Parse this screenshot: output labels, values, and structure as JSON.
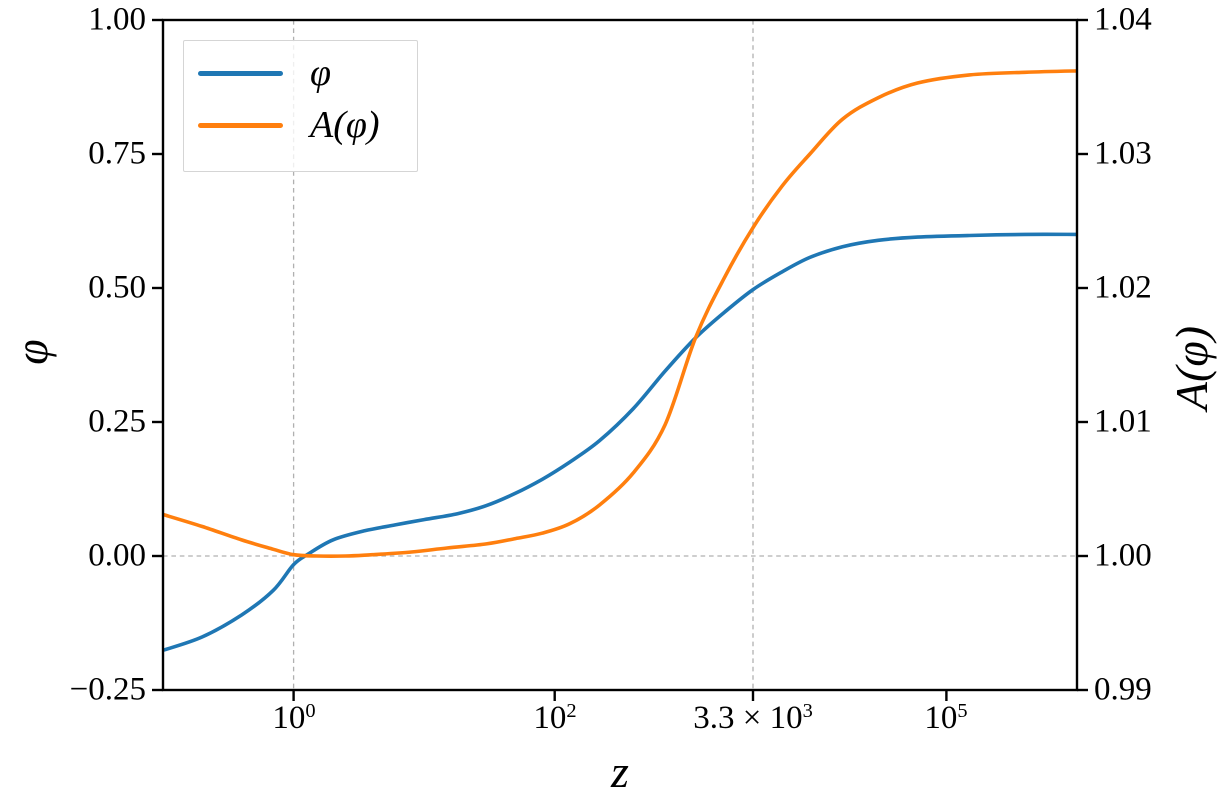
{
  "figure": {
    "background": "#ffffff",
    "axes": {
      "xlabel": "z",
      "ylabel_left": "φ",
      "ylabel_right": "𝒜(φ)"
    },
    "legend": {
      "position": "upper left",
      "items": [
        {
          "label": "φ",
          "color": "#1f77b4"
        },
        {
          "label": "𝒜(φ)",
          "color": "#ff7f0e"
        }
      ]
    }
  },
  "chart_data": {
    "type": "line",
    "title": "",
    "x_scale": "log",
    "xlabel": "z",
    "xlim": [
      0.1,
      1000000
    ],
    "grid_on": true,
    "xticks": [
      {
        "value": 1,
        "label": "10^0"
      },
      {
        "value": 100,
        "label": "10^2"
      },
      {
        "value": 3300,
        "label": "3.3 × 10^3"
      },
      {
        "value": 100000,
        "label": "10^5"
      }
    ],
    "left_axis": {
      "label": "φ",
      "ylim": [
        -0.25,
        1.0
      ],
      "ticks": [
        {
          "value": 1.0,
          "label": "1.00"
        },
        {
          "value": 0.75,
          "label": "0.75"
        },
        {
          "value": 0.5,
          "label": "0.50"
        },
        {
          "value": 0.25,
          "label": "0.25"
        },
        {
          "value": 0.0,
          "label": "0.00"
        },
        {
          "value": -0.25,
          "label": "−0.25"
        }
      ]
    },
    "right_axis": {
      "label": "𝒜(φ)",
      "ylim": [
        0.99,
        1.04
      ],
      "ticks": [
        {
          "value": 1.04,
          "label": "1.04"
        },
        {
          "value": 1.03,
          "label": "1.03"
        },
        {
          "value": 1.02,
          "label": "1.02"
        },
        {
          "value": 1.01,
          "label": "1.01"
        },
        {
          "value": 1.0,
          "label": "1.00"
        },
        {
          "value": 0.99,
          "label": "0.99"
        }
      ]
    },
    "grid": {
      "x_values": [
        1,
        3300
      ],
      "left_y_values": [
        0.0
      ],
      "style": "dashed",
      "color": "#b0b0b0"
    },
    "series": [
      {
        "name": "φ",
        "axis": "left",
        "color": "#1f77b4",
        "points": [
          [
            0.1,
            -0.176
          ],
          [
            0.2,
            -0.151
          ],
          [
            0.4,
            -0.11
          ],
          [
            0.7,
            -0.064
          ],
          [
            1.0,
            -0.016
          ],
          [
            1.3,
            0.004
          ],
          [
            2,
            0.03
          ],
          [
            3.5,
            0.047
          ],
          [
            6,
            0.058
          ],
          [
            10,
            0.068
          ],
          [
            18,
            0.079
          ],
          [
            30,
            0.094
          ],
          [
            50,
            0.117
          ],
          [
            80,
            0.143
          ],
          [
            130,
            0.175
          ],
          [
            220,
            0.215
          ],
          [
            400,
            0.275
          ],
          [
            700,
            0.345
          ],
          [
            1200,
            0.407
          ],
          [
            2000,
            0.455
          ],
          [
            3300,
            0.497
          ],
          [
            5500,
            0.53
          ],
          [
            9000,
            0.557
          ],
          [
            16000,
            0.577
          ],
          [
            30000,
            0.589
          ],
          [
            60000,
            0.595
          ],
          [
            150000,
            0.598
          ],
          [
            400000,
            0.6
          ],
          [
            1000000,
            0.6
          ]
        ]
      },
      {
        "name": "𝒜(φ)",
        "axis": "right",
        "color": "#ff7f0e",
        "points": [
          [
            0.1,
            1.0031
          ],
          [
            0.2,
            1.0022
          ],
          [
            0.4,
            1.0012
          ],
          [
            0.7,
            1.0005
          ],
          [
            1.0,
            1.0001
          ],
          [
            1.5,
            1.0
          ],
          [
            2.5,
            1.0
          ],
          [
            4,
            1.0001
          ],
          [
            8,
            1.0003
          ],
          [
            15,
            1.0006
          ],
          [
            30,
            1.0009
          ],
          [
            50,
            1.0013
          ],
          [
            80,
            1.0017
          ],
          [
            130,
            1.0024
          ],
          [
            220,
            1.0038
          ],
          [
            400,
            1.0062
          ],
          [
            700,
            1.0098
          ],
          [
            1200,
            1.0163
          ],
          [
            2000,
            1.0208
          ],
          [
            3300,
            1.0245
          ],
          [
            5500,
            1.0276
          ],
          [
            9000,
            1.03
          ],
          [
            16000,
            1.0326
          ],
          [
            30000,
            1.0342
          ],
          [
            60000,
            1.0353
          ],
          [
            150000,
            1.0359
          ],
          [
            400000,
            1.0361
          ],
          [
            1000000,
            1.0362
          ]
        ]
      }
    ]
  }
}
